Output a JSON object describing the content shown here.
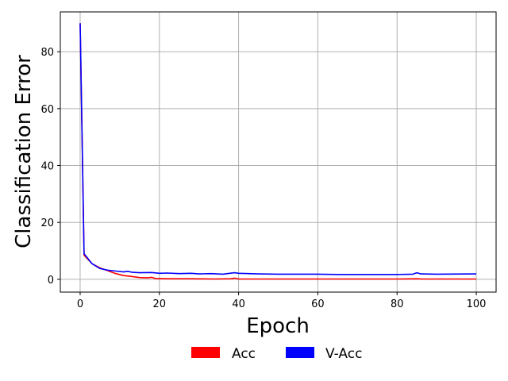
{
  "chart_data": {
    "type": "line",
    "title": "",
    "xlabel": "Epoch",
    "ylabel": "Classification Error",
    "xlim": [
      -5,
      105
    ],
    "ylim": [
      -4.5,
      94
    ],
    "xticks": [
      0,
      20,
      40,
      60,
      80,
      100
    ],
    "yticks": [
      0,
      20,
      40,
      60,
      80
    ],
    "grid": true,
    "legend_position": "below",
    "series": [
      {
        "name": "Acc",
        "color": "#ff0000",
        "x": [
          0,
          1,
          3,
          5,
          7,
          9,
          11,
          13,
          15,
          17,
          18,
          19,
          22,
          25,
          28,
          30,
          34,
          38,
          39,
          40,
          45,
          50,
          60,
          70,
          80,
          85,
          86,
          90,
          100
        ],
        "y": [
          90,
          8.5,
          5.5,
          4,
          3,
          2,
          1.3,
          1,
          0.6,
          0.5,
          0.7,
          0.3,
          0.2,
          0.2,
          0.2,
          0.15,
          0.1,
          0.2,
          0.4,
          0.1,
          0.1,
          0.1,
          0.1,
          0.1,
          0.1,
          0.2,
          0.1,
          0.1,
          0.1
        ]
      },
      {
        "name": "V-Acc",
        "color": "#0000ff",
        "x": [
          0,
          1,
          3,
          5,
          7,
          9,
          11,
          12,
          13,
          15,
          18,
          20,
          22,
          25,
          28,
          30,
          33,
          36,
          39,
          40,
          45,
          50,
          55,
          60,
          65,
          70,
          75,
          80,
          84,
          85,
          86,
          90,
          100
        ],
        "y": [
          90,
          9,
          5.5,
          3.8,
          3.2,
          2.9,
          2.6,
          2.8,
          2.5,
          2.3,
          2.4,
          2.1,
          2.2,
          2.0,
          2.1,
          1.9,
          2.0,
          1.8,
          2.3,
          2.1,
          1.9,
          1.8,
          1.8,
          1.8,
          1.7,
          1.7,
          1.7,
          1.7,
          1.8,
          2.3,
          1.9,
          1.8,
          1.9
        ]
      }
    ]
  }
}
